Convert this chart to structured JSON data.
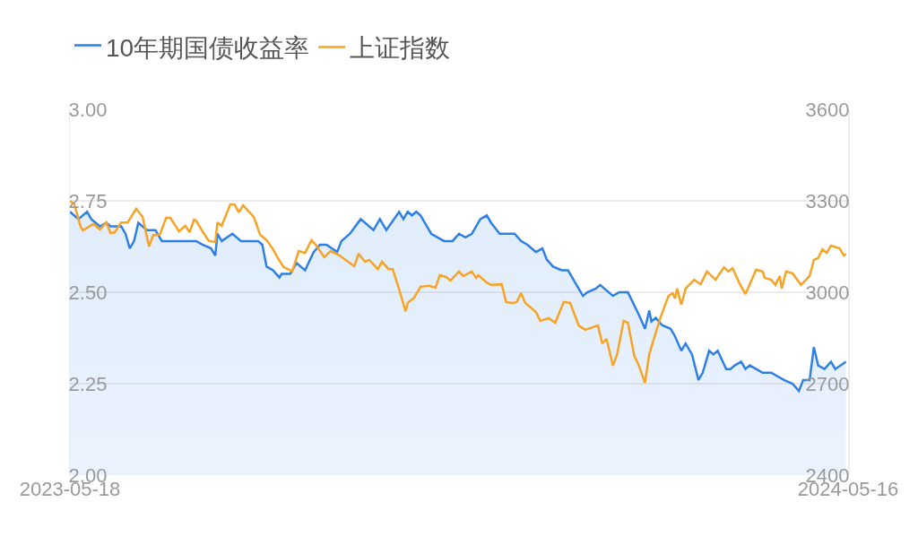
{
  "chart_data": {
    "type": "line",
    "xlim": [
      "2023-05-18",
      "2024-05-16"
    ],
    "xticks": [
      "2023-05-18",
      "2024-05-16"
    ],
    "ylim": [
      2,
      3
    ],
    "yticks": [
      {
        "value": 2,
        "label": "2.00"
      },
      {
        "value": 2.25,
        "label": "2.25"
      },
      {
        "value": 2.5,
        "label": "2.50"
      },
      {
        "value": 2.75,
        "label": "2.75"
      },
      {
        "value": 3,
        "label": "3.00"
      }
    ],
    "y2lim": [
      2400,
      3600
    ],
    "y2ticks": [
      2400,
      2700,
      3000,
      3300,
      3600
    ],
    "grid": "y",
    "legend": "top left",
    "series": [
      {
        "name": "10年期国债收益率",
        "type": "area",
        "color": "#2f80e6",
        "x": [
          "2023-05-18",
          "2023-05-22",
          "2023-05-26",
          "2023-05-28",
          "2023-06-01",
          "2023-06-04",
          "2023-06-06",
          "2023-06-11",
          "2023-06-13",
          "2023-06-15",
          "2023-06-17",
          "2023-06-19",
          "2023-06-23",
          "2023-06-27",
          "2023-06-30",
          "2023-07-03",
          "2023-07-06",
          "2023-07-11",
          "2023-07-16",
          "2023-07-19",
          "2023-07-23",
          "2023-07-25",
          "2023-07-26",
          "2023-07-28",
          "2023-08-02",
          "2023-08-06",
          "2023-08-14",
          "2023-08-16",
          "2023-08-18",
          "2023-08-21",
          "2023-08-24",
          "2023-08-25",
          "2023-08-29",
          "2023-09-01",
          "2023-09-05",
          "2023-09-09",
          "2023-09-12",
          "2023-09-15",
          "2023-09-20",
          "2023-09-22",
          "2023-09-26",
          "2023-10-01",
          "2023-10-07",
          "2023-10-10",
          "2023-10-13",
          "2023-10-19",
          "2023-10-21",
          "2023-10-23",
          "2023-10-25",
          "2023-10-27",
          "2023-10-29",
          "2023-11-03",
          "2023-11-06",
          "2023-11-09",
          "2023-11-13",
          "2023-11-16",
          "2023-11-19",
          "2023-11-22",
          "2023-11-26",
          "2023-11-29",
          "2023-12-01",
          "2023-12-05",
          "2023-12-08",
          "2023-12-12",
          "2023-12-15",
          "2023-12-18",
          "2023-12-22",
          "2023-12-25",
          "2023-12-27",
          "2023-12-30",
          "2024-01-03",
          "2024-01-06",
          "2024-01-09",
          "2024-01-13",
          "2024-01-15",
          "2024-01-19",
          "2024-01-21",
          "2024-01-23",
          "2024-01-27",
          "2024-01-30",
          "2024-02-03",
          "2024-02-08",
          "2024-02-11",
          "2024-02-13",
          "2024-02-14",
          "2024-02-16",
          "2024-02-19",
          "2024-02-23",
          "2024-02-25",
          "2024-02-28",
          "2024-03-01",
          "2024-03-04",
          "2024-03-07",
          "2024-03-09",
          "2024-03-12",
          "2024-03-14",
          "2024-03-16",
          "2024-03-20",
          "2024-03-22",
          "2024-03-24",
          "2024-03-27",
          "2024-03-29",
          "2024-03-31",
          "2024-04-03",
          "2024-04-06",
          "2024-04-10",
          "2024-04-16",
          "2024-04-20",
          "2024-04-23",
          "2024-04-25",
          "2024-04-28",
          "2024-04-30",
          "2024-05-02",
          "2024-05-05",
          "2024-05-08",
          "2024-05-10",
          "2024-05-15"
        ],
        "values": [
          2.72,
          2.7,
          2.72,
          2.7,
          2.68,
          2.69,
          2.68,
          2.68,
          2.66,
          2.62,
          2.64,
          2.69,
          2.67,
          2.67,
          2.64,
          2.64,
          2.64,
          2.64,
          2.64,
          2.63,
          2.62,
          2.6,
          2.66,
          2.64,
          2.66,
          2.64,
          2.64,
          2.63,
          2.57,
          2.56,
          2.54,
          2.55,
          2.55,
          2.58,
          2.56,
          2.61,
          2.63,
          2.63,
          2.61,
          2.64,
          2.66,
          2.7,
          2.67,
          2.7,
          2.67,
          2.72,
          2.7,
          2.72,
          2.71,
          2.72,
          2.71,
          2.66,
          2.65,
          2.64,
          2.64,
          2.66,
          2.65,
          2.66,
          2.7,
          2.71,
          2.69,
          2.66,
          2.66,
          2.66,
          2.64,
          2.63,
          2.61,
          2.62,
          2.59,
          2.57,
          2.56,
          2.56,
          2.53,
          2.49,
          2.5,
          2.51,
          2.52,
          2.51,
          2.49,
          2.5,
          2.5,
          2.44,
          2.4,
          2.45,
          2.42,
          2.43,
          2.41,
          2.4,
          2.38,
          2.34,
          2.36,
          2.33,
          2.26,
          2.28,
          2.34,
          2.33,
          2.34,
          2.29,
          2.29,
          2.3,
          2.31,
          2.29,
          2.3,
          2.29,
          2.28,
          2.28,
          2.26,
          2.25,
          2.23,
          2.26,
          2.26,
          2.35,
          2.3,
          2.29,
          2.31,
          2.29,
          2.31
        ]
      },
      {
        "name": "上证指数",
        "axis": "y2",
        "color": "#f7a325",
        "x": [
          "2023-05-18",
          "2023-05-20",
          "2023-05-23",
          "2023-05-24",
          "2023-05-29",
          "2023-06-01",
          "2023-06-04",
          "2023-06-06",
          "2023-06-08",
          "2023-06-11",
          "2023-06-14",
          "2023-06-18",
          "2023-06-21",
          "2023-06-24",
          "2023-06-26",
          "2023-06-29",
          "2023-07-02",
          "2023-07-04",
          "2023-07-08",
          "2023-07-11",
          "2023-07-13",
          "2023-07-15",
          "2023-07-16",
          "2023-07-19",
          "2023-07-22",
          "2023-07-25",
          "2023-07-26",
          "2023-07-28",
          "2023-08-01",
          "2023-08-03",
          "2023-08-05",
          "2023-08-07",
          "2023-08-12",
          "2023-08-15",
          "2023-08-18",
          "2023-08-21",
          "2023-08-23",
          "2023-08-26",
          "2023-08-28",
          "2023-08-30",
          "2023-09-02",
          "2023-09-05",
          "2023-09-08",
          "2023-09-10",
          "2023-09-14",
          "2023-09-17",
          "2023-09-21",
          "2023-09-28",
          "2023-09-30",
          "2023-10-03",
          "2023-10-05",
          "2023-10-09",
          "2023-10-11",
          "2023-10-14",
          "2023-10-16",
          "2023-10-19",
          "2023-10-22",
          "2023-10-23",
          "2023-10-26",
          "2023-10-29",
          "2023-11-02",
          "2023-11-05",
          "2023-11-07",
          "2023-11-10",
          "2023-11-12",
          "2023-11-16",
          "2023-11-18",
          "2023-11-22",
          "2023-11-24",
          "2023-11-25",
          "2023-11-29",
          "2023-12-01",
          "2023-12-06",
          "2023-12-08",
          "2023-12-11",
          "2023-12-13",
          "2023-12-15",
          "2023-12-17",
          "2023-12-22",
          "2023-12-24",
          "2023-12-28",
          "2023-12-31",
          "2024-01-04",
          "2024-01-07",
          "2024-01-11",
          "2024-01-14",
          "2024-01-20",
          "2024-01-22",
          "2024-01-24",
          "2024-01-27",
          "2024-01-29",
          "2024-02-01",
          "2024-02-03",
          "2024-02-06",
          "2024-02-08",
          "2024-02-11",
          "2024-02-13",
          "2024-02-18",
          "2024-02-22",
          "2024-02-24",
          "2024-02-25",
          "2024-02-26",
          "2024-02-28",
          "2024-03-01",
          "2024-03-05",
          "2024-03-08",
          "2024-03-11",
          "2024-03-15",
          "2024-03-19",
          "2024-03-21",
          "2024-03-23",
          "2024-03-26",
          "2024-03-29",
          "2024-04-03",
          "2024-04-06",
          "2024-04-07",
          "2024-04-10",
          "2024-04-12",
          "2024-04-14",
          "2024-04-15",
          "2024-04-17",
          "2024-04-20",
          "2024-04-24",
          "2024-04-28",
          "2024-04-30",
          "2024-05-02",
          "2024-05-04",
          "2024-05-06",
          "2024-05-08",
          "2024-05-12",
          "2024-05-14",
          "2024-05-15"
        ],
        "values": [
          3300,
          3290,
          3215,
          3203,
          3224,
          3206,
          3229,
          3194,
          3197,
          3229,
          3229,
          3274,
          3247,
          3150,
          3188,
          3188,
          3244,
          3244,
          3200,
          3218,
          3197,
          3238,
          3235,
          3200,
          3168,
          3165,
          3229,
          3218,
          3288,
          3288,
          3262,
          3285,
          3247,
          3188,
          3171,
          3141,
          3115,
          3082,
          3076,
          3068,
          3135,
          3129,
          3171,
          3156,
          3115,
          3135,
          3121,
          3085,
          3126,
          3100,
          3106,
          3076,
          3100,
          3076,
          3076,
          3009,
          2938,
          2965,
          2982,
          3018,
          3021,
          3015,
          3056,
          3050,
          3038,
          3068,
          3053,
          3068,
          3047,
          3056,
          3032,
          3024,
          3026,
          2968,
          2965,
          2968,
          2997,
          2965,
          2935,
          2906,
          2915,
          2900,
          2968,
          2965,
          2891,
          2877,
          2891,
          2832,
          2847,
          2759,
          2797,
          2906,
          2900,
          2791,
          2762,
          2703,
          2797,
          2912,
          2988,
          2997,
          2979,
          3012,
          2959,
          3012,
          3041,
          3026,
          3068,
          3041,
          3082,
          3068,
          3079,
          3032,
          2994,
          3074,
          3068,
          3047,
          3041,
          3024,
          3053,
          3012,
          3068,
          3062,
          3024,
          3053,
          3106,
          3112,
          3141,
          3129,
          3153,
          3144,
          3121,
          3126
        ]
      }
    ]
  }
}
